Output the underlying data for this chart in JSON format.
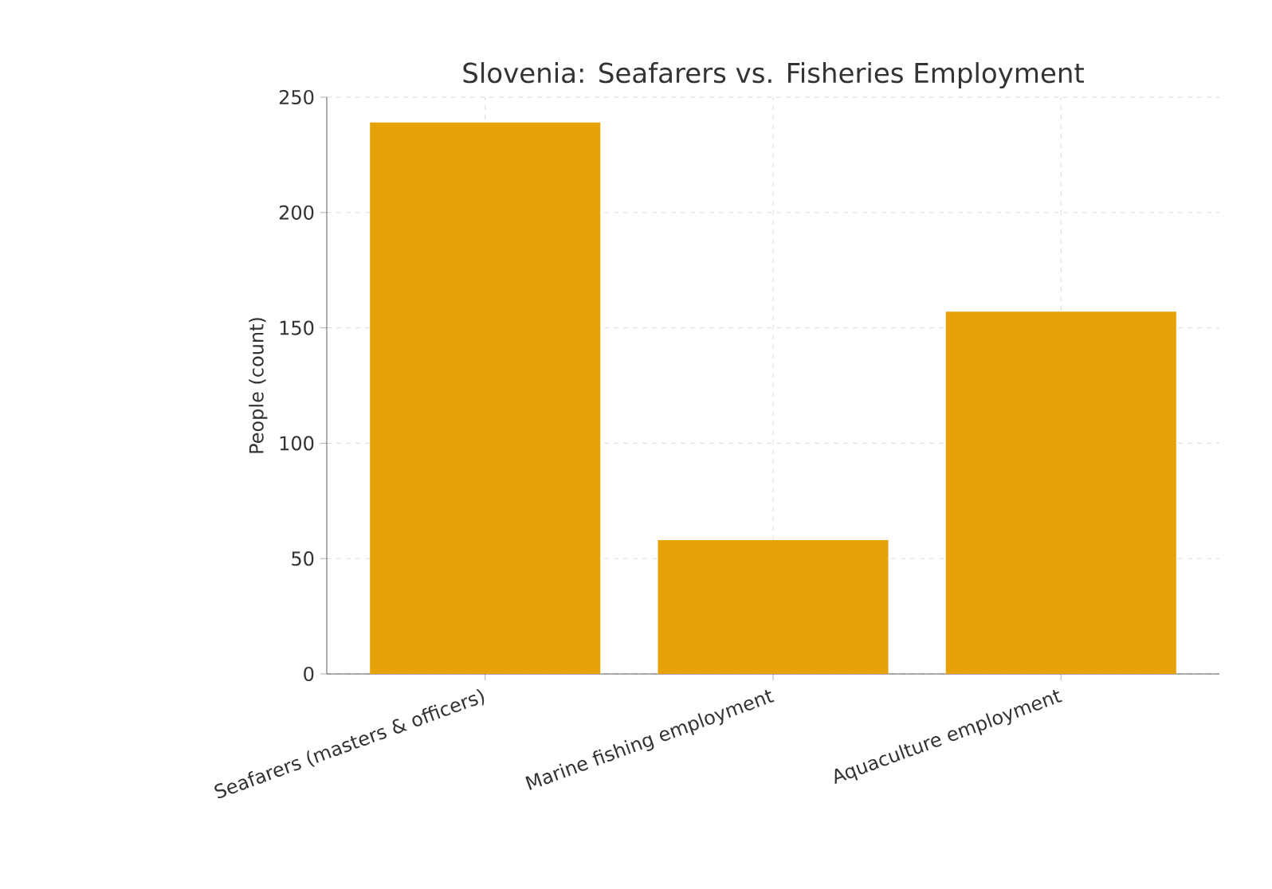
{
  "chart_data": {
    "type": "bar",
    "title": "Slovenia: Seafarers vs. Fisheries Employment",
    "ylabel": "People (count)",
    "categories": [
      "Seafarers (masters & officers)",
      "Marine fishing employment",
      "Aquaculture employment"
    ],
    "values": [
      239,
      58,
      157
    ],
    "color": "#e6a208",
    "ylim": [
      0,
      250
    ],
    "yticks": [
      0,
      50,
      100,
      150,
      200,
      250
    ],
    "grid": true
  }
}
